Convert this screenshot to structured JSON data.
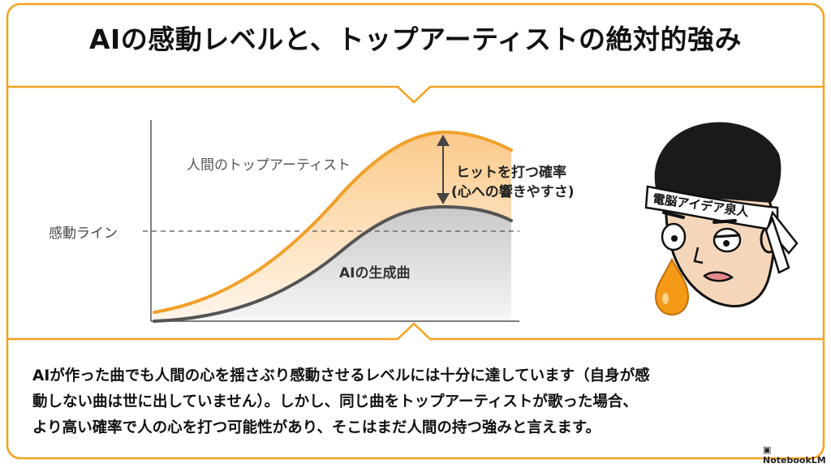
{
  "title": "AIの感動レベルと、トップアーティストの絶対的強み",
  "diagram": {
    "top_curve_label": "人間のトップアーティスト",
    "bottom_curve_label": "AIの生成曲",
    "threshold_label": "感動ライン",
    "gap_label_line1": "ヒットを打つ確率",
    "gap_label_line2": "(心への響きやすさ)",
    "headband_text": "電脳アイデア泉人"
  },
  "description": {
    "line1": "AIが作った曲でも人間の心を揺さぶり感動させるレベルには十分に達しています（自身が感",
    "line2": "動しない曲は世に出していません）。しかし、同じ曲をトップアーティストが歌った場合、",
    "line3": "より高い確率で人の心を打つ可能性があり、そこはまだ人間の持つ強みと言えます。"
  },
  "footer": {
    "brand": "NotebookLM"
  },
  "colors": {
    "accent": "#f5a11e",
    "human_curve": "#f0a02a",
    "ai_curve": "#555555"
  }
}
